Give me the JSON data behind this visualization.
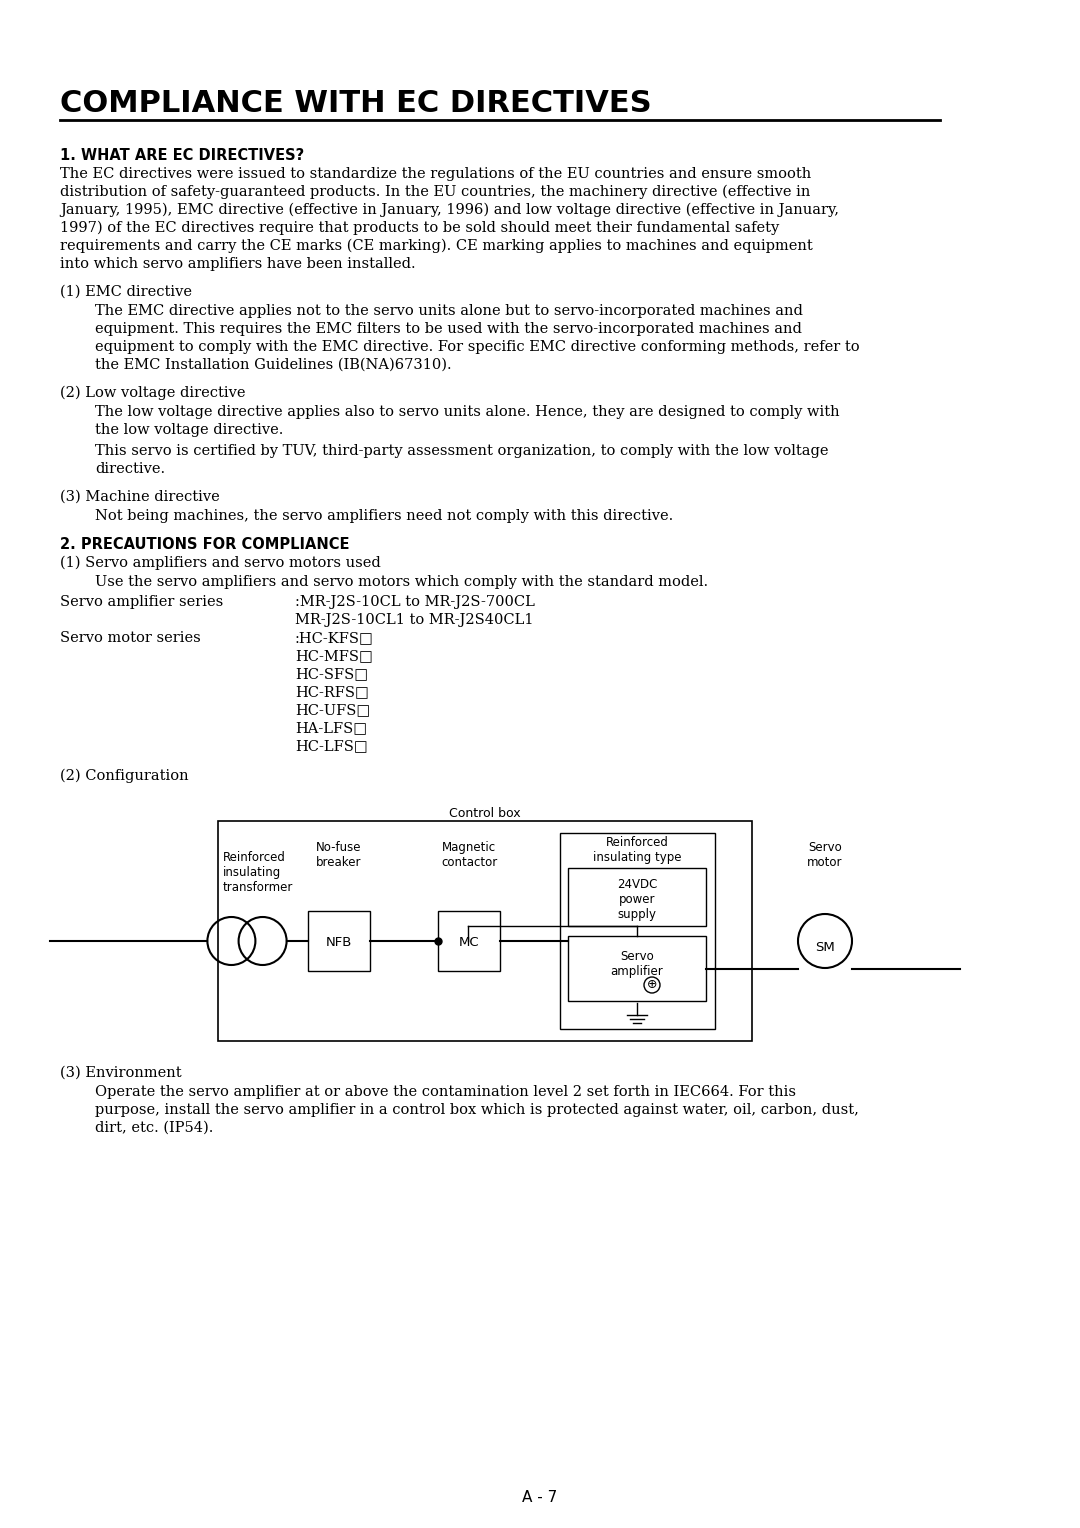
{
  "title": "COMPLIANCE WITH EC DIRECTIVES",
  "bg_color": "#ffffff",
  "content": {
    "section1_heading": "1. WHAT ARE EC DIRECTIVES?",
    "section1_body_lines": [
      "The EC directives were issued to standardize the regulations of the EU countries and ensure smooth",
      "distribution of safety-guaranteed products. In the EU countries, the machinery directive (effective in",
      "January, 1995), EMC directive (effective in January, 1996) and low voltage directive (effective in January,",
      "1997) of the EC directives require that products to be sold should meet their fundamental safety",
      "requirements and carry the CE marks (CE marking). CE marking applies to machines and equipment",
      "into which servo amplifiers have been installed."
    ],
    "emc_heading": "(1) EMC directive",
    "emc_body_lines": [
      "The EMC directive applies not to the servo units alone but to servo-incorporated machines and",
      "equipment. This requires the EMC filters to be used with the servo-incorporated machines and",
      "equipment to comply with the EMC directive. For specific EMC directive conforming methods, refer to",
      "the EMC Installation Guidelines (IB(NA)67310)."
    ],
    "lv_heading": "(2) Low voltage directive",
    "lv_body1_lines": [
      "The low voltage directive applies also to servo units alone. Hence, they are designed to comply with",
      "the low voltage directive."
    ],
    "lv_body2_lines": [
      "This servo is certified by TUV, third-party assessment organization, to comply with the low voltage",
      "directive."
    ],
    "machine_heading": "(3) Machine directive",
    "machine_body": "Not being machines, the servo amplifiers need not comply with this directive.",
    "section2_heading": "2. PRECAUTIONS FOR COMPLIANCE",
    "servo_amp_heading": "(1) Servo amplifiers and servo motors used",
    "servo_amp_body": "Use the servo amplifiers and servo motors which comply with the standard model.",
    "amp_series_label": "Servo amplifier series",
    "amp_series_val1": ":MR-J2S-10CL to MR-J2S-700CL",
    "amp_series_val2": "MR-J2S-10CL1 to MR-J2S40CL1",
    "motor_series_label": "Servo motor series",
    "motor_series_vals": [
      ":HC-KFS□",
      "HC-MFS□",
      "HC-SFS□",
      "HC-RFS□",
      "HC-UFS□",
      "HA-LFS□",
      "HC-LFS□"
    ],
    "config_heading": "(2) Configuration",
    "control_box_label": "Control box",
    "reinforced_ins_type": "Reinforced\ninsulating type",
    "reinforced_ins_transformer": "Reinforced\ninsulating\ntransformer",
    "no_fuse_breaker": "No-fuse\nbreaker",
    "magnetic_contactor": "Magnetic\ncontactor",
    "power_supply_24v": "24VDC\npower\nsupply",
    "servo_amplifier": "Servo\namplifier",
    "servo_motor": "Servo\nmotor",
    "nfb_label": "NFB",
    "mc_label": "MC",
    "sm_label": "SM",
    "env_heading": "(3) Environment",
    "env_body_lines": [
      "Operate the servo amplifier at or above the contamination level 2 set forth in IEC664. For this",
      "purpose, install the servo amplifier in a control box which is protected against water, oil, carbon, dust,",
      "dirt, etc. (IP54)."
    ],
    "page_label": "A - 7"
  }
}
